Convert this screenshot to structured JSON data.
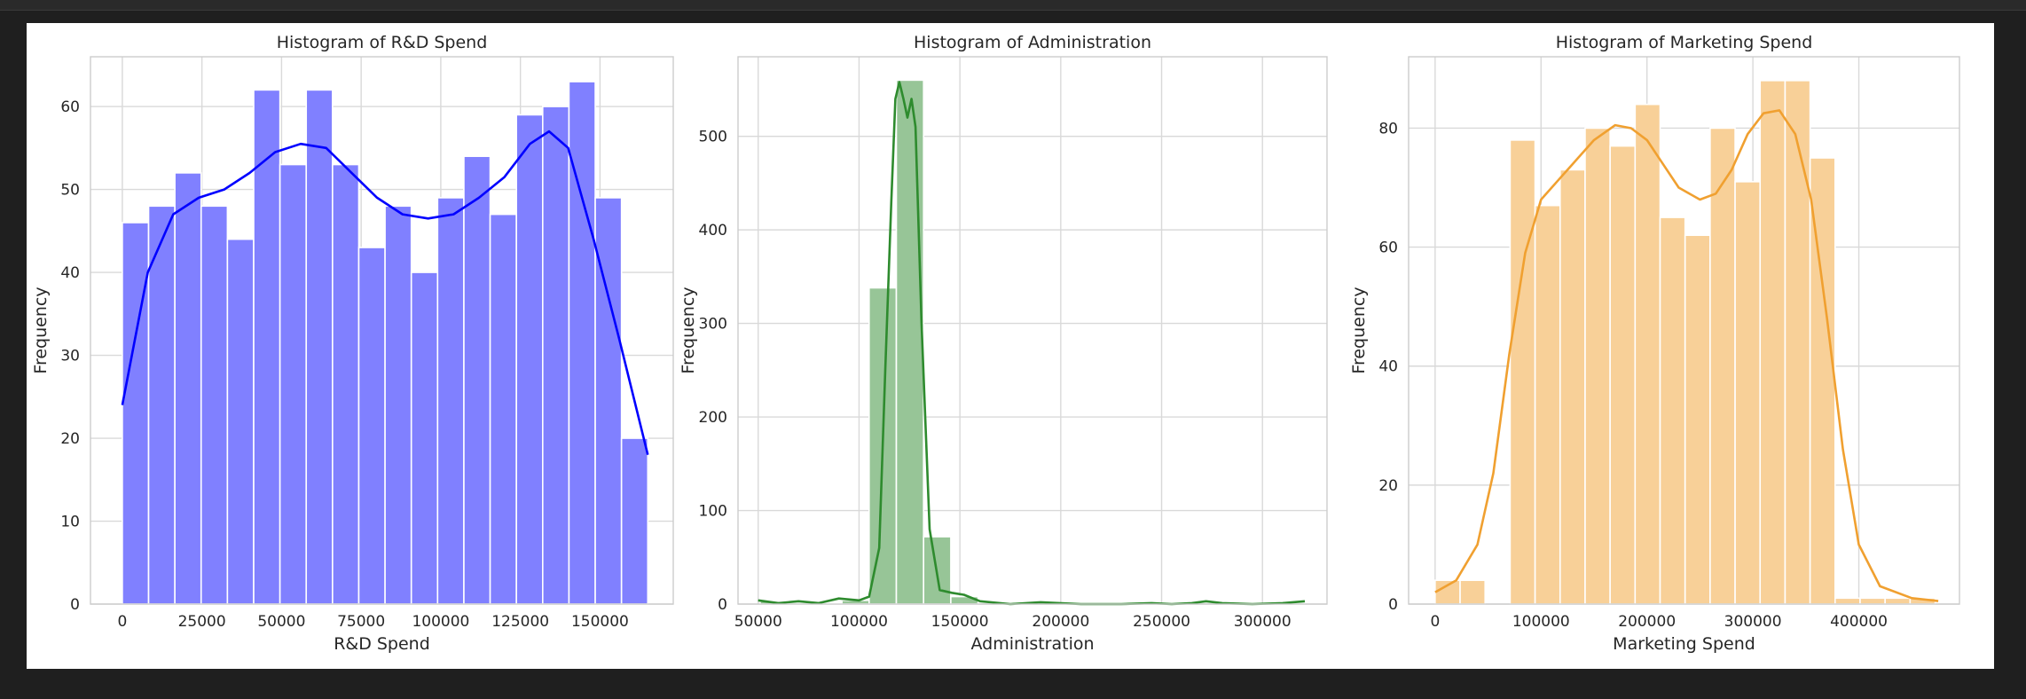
{
  "chart_data": [
    {
      "type": "bar",
      "title": "Histogram of R&D Spend",
      "xlabel": "R&D Spend",
      "ylabel": "Frequency",
      "color": "#0000ff",
      "kde": true,
      "xlim": [
        -10000,
        173000
      ],
      "ylim": [
        0,
        66
      ],
      "xticks": [
        0,
        25000,
        50000,
        75000,
        100000,
        125000,
        150000
      ],
      "xtick_labels": [
        "0",
        "25000",
        "50000",
        "75000",
        "100000",
        "125000",
        "150000"
      ],
      "yticks": [
        0,
        10,
        20,
        30,
        40,
        50,
        60
      ],
      "ytick_labels": [
        "0",
        "10",
        "20",
        "30",
        "40",
        "50",
        "60"
      ],
      "bin_start": 0,
      "bin_width": 8250,
      "values": [
        46,
        48,
        52,
        48,
        44,
        62,
        53,
        62,
        53,
        43,
        48,
        40,
        49,
        54,
        47,
        59,
        60,
        63,
        49,
        20
      ],
      "kde_x": [
        0,
        8000,
        16000,
        24000,
        32000,
        40000,
        48000,
        56000,
        64000,
        72000,
        80000,
        88000,
        96000,
        104000,
        112000,
        120000,
        128000,
        134000,
        140000,
        148000,
        156000,
        165000
      ],
      "kde_y": [
        24,
        40,
        47,
        49,
        50,
        52,
        54.5,
        55.5,
        55,
        52,
        49,
        47,
        46.5,
        47,
        49,
        51.5,
        55.5,
        57,
        55,
        44,
        32,
        18
      ]
    },
    {
      "type": "bar",
      "title": "Histogram of Administration",
      "xlabel": "Administration",
      "ylabel": "Frequency",
      "color": "#2e8b2e",
      "kde": true,
      "xlim": [
        40000,
        332000
      ],
      "ylim": [
        0,
        585
      ],
      "xticks": [
        50000,
        100000,
        150000,
        200000,
        250000,
        300000
      ],
      "xtick_labels": [
        "50000",
        "100000",
        "150000",
        "200000",
        "250000",
        "300000"
      ],
      "yticks": [
        0,
        100,
        200,
        300,
        400,
        500
      ],
      "ytick_labels": [
        "0",
        "100",
        "200",
        "300",
        "400",
        "500"
      ],
      "bin_start": 51000,
      "bin_width": 13500,
      "values": [
        3,
        1,
        1,
        4,
        338,
        560,
        72,
        8,
        0,
        1,
        0,
        0,
        1,
        0,
        0,
        0,
        0,
        0,
        0,
        1
      ],
      "kde_x": [
        50000,
        60000,
        70000,
        80000,
        90000,
        100000,
        105000,
        110000,
        113000,
        116000,
        118000,
        120000,
        122000,
        124000,
        126000,
        128000,
        131000,
        135000,
        140000,
        146000,
        152000,
        160000,
        175000,
        190000,
        210000,
        230000,
        245000,
        255000,
        265000,
        272000,
        280000,
        295000,
        310000,
        321000
      ],
      "kde_y": [
        4,
        1,
        3,
        1,
        6,
        4,
        8,
        60,
        250,
        430,
        540,
        558,
        540,
        520,
        540,
        510,
        300,
        80,
        15,
        12,
        10,
        3,
        0,
        2,
        0,
        0,
        1,
        0,
        1,
        3,
        1,
        0,
        1,
        3
      ]
    },
    {
      "type": "bar",
      "title": "Histogram of Marketing Spend",
      "xlabel": "Marketing Spend",
      "ylabel": "Frequency",
      "color": "#f0a030",
      "kde": true,
      "xlim": [
        -25000,
        495000
      ],
      "ylim": [
        0,
        92
      ],
      "xticks": [
        0,
        100000,
        200000,
        300000,
        400000
      ],
      "xtick_labels": [
        "0",
        "100000",
        "200000",
        "300000",
        "400000"
      ],
      "yticks": [
        0,
        20,
        40,
        60,
        80
      ],
      "ytick_labels": [
        "0",
        "20",
        "40",
        "60",
        "80"
      ],
      "bin_start": 0,
      "bin_width": 23600,
      "values": [
        4,
        4,
        0,
        78,
        67,
        73,
        80,
        77,
        84,
        65,
        62,
        80,
        71,
        88,
        88,
        75,
        1,
        1,
        1,
        1
      ],
      "kde_x": [
        0,
        20000,
        40000,
        55000,
        70000,
        85000,
        100000,
        115000,
        130000,
        150000,
        170000,
        185000,
        200000,
        215000,
        230000,
        250000,
        265000,
        280000,
        295000,
        310000,
        325000,
        340000,
        355000,
        370000,
        385000,
        400000,
        420000,
        450000,
        475000
      ],
      "kde_y": [
        2,
        4,
        10,
        22,
        42,
        59,
        68,
        71,
        74,
        78,
        80.5,
        80,
        78,
        74,
        70,
        68,
        69,
        73,
        79,
        82.5,
        83,
        79,
        68,
        48,
        26,
        10,
        3,
        1,
        0.5
      ]
    }
  ]
}
